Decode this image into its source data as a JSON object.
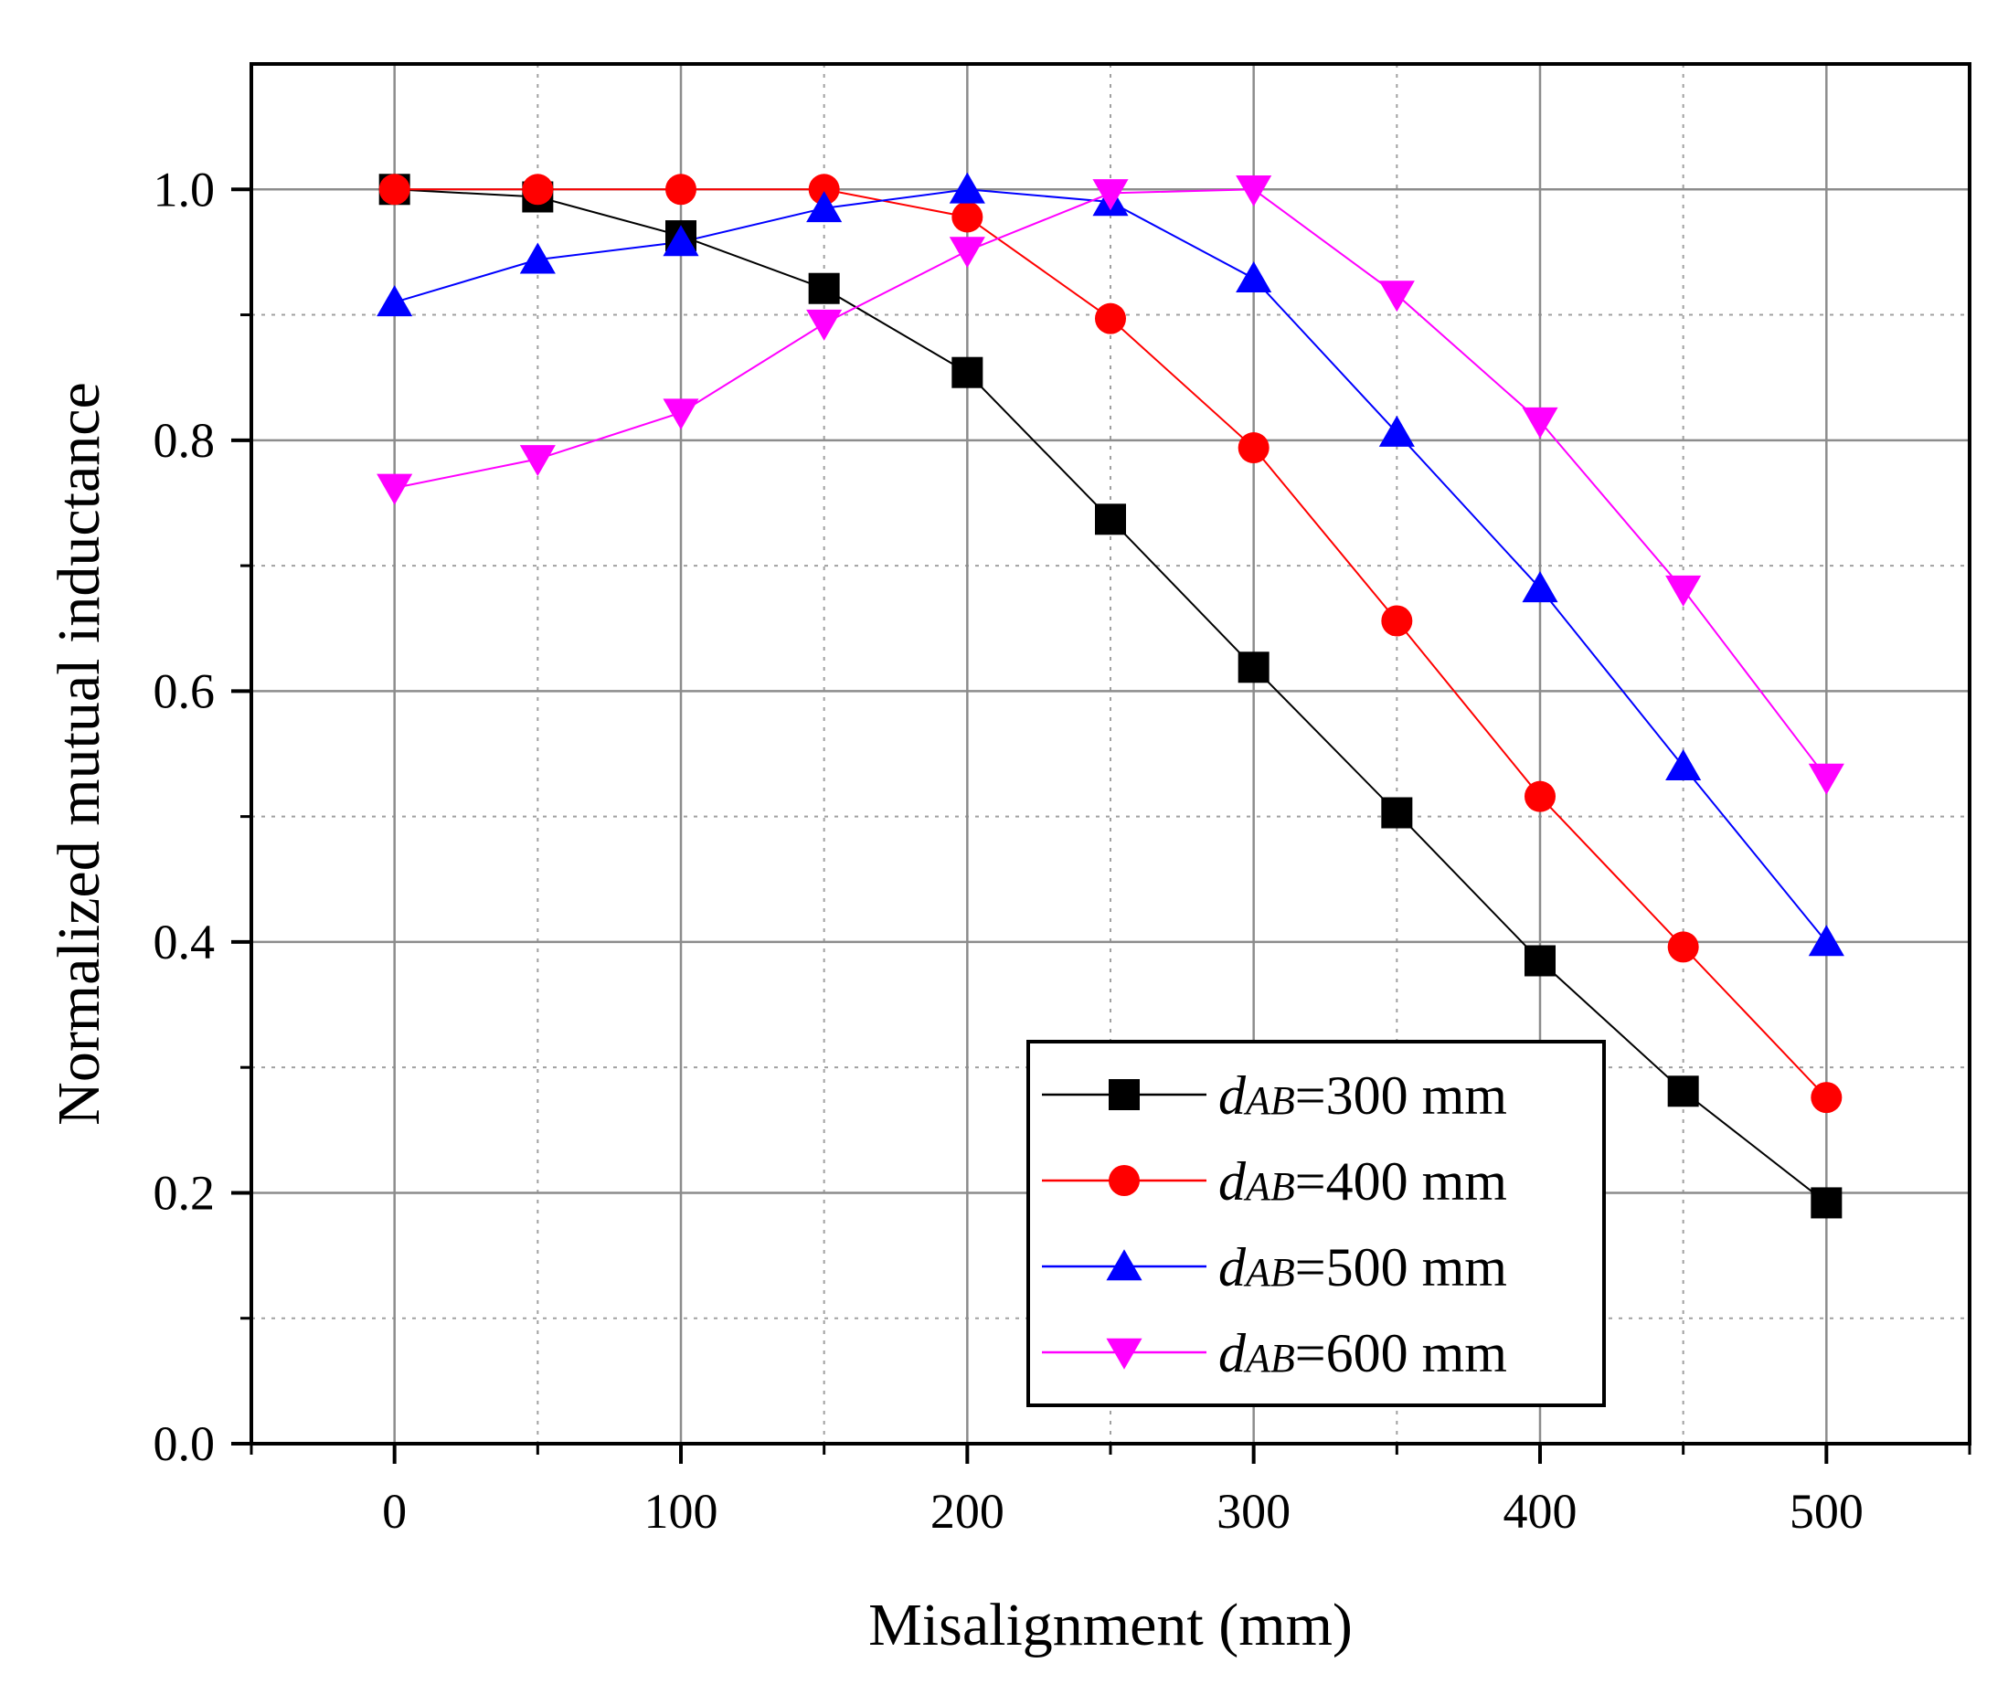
{
  "chart_data": {
    "type": "line",
    "title": "",
    "xlabel": "Misalignment (mm)",
    "ylabel": "Normalized mutual inductance",
    "xlim": [
      -50,
      550
    ],
    "ylim": [
      0.0,
      1.1
    ],
    "xticks": [
      0,
      100,
      200,
      300,
      400,
      500
    ],
    "xtick_labels": [
      "0",
      "100",
      "200",
      "300",
      "400",
      "500"
    ],
    "yticks": [
      0.0,
      0.2,
      0.4,
      0.6,
      0.8,
      1.0
    ],
    "ytick_labels": [
      "0.0",
      "0.2",
      "0.4",
      "0.6",
      "0.8",
      "1.0"
    ],
    "grid": true,
    "legend_position": "bottom-right",
    "x": [
      0,
      50,
      100,
      150,
      200,
      250,
      300,
      350,
      400,
      450,
      500
    ],
    "series": [
      {
        "name": "dAB=300 mm",
        "label_prefix": "d",
        "label_sub": "AB",
        "label_suffix": "=300 mm",
        "color": "#000000",
        "marker": "square",
        "values": [
          1.0,
          0.994,
          0.963,
          0.921,
          0.854,
          0.737,
          0.619,
          0.503,
          0.385,
          0.281,
          0.192
        ]
      },
      {
        "name": "dAB=400 mm",
        "label_prefix": "d",
        "label_sub": "AB",
        "label_suffix": "=400 mm",
        "color": "#ff0000",
        "marker": "circle",
        "values": [
          1.0,
          1.0,
          1.0,
          1.0,
          0.978,
          0.897,
          0.794,
          0.656,
          0.516,
          0.396,
          0.276
        ]
      },
      {
        "name": "dAB=500 mm",
        "label_prefix": "d",
        "label_sub": "AB",
        "label_suffix": "=500 mm",
        "color": "#0000ff",
        "marker": "triangle-up",
        "values": [
          0.91,
          0.944,
          0.958,
          0.985,
          1.0,
          0.99,
          0.929,
          0.806,
          0.682,
          0.54,
          0.4
        ]
      },
      {
        "name": "dAB=600 mm",
        "label_prefix": "d",
        "label_sub": "AB",
        "label_suffix": "=600 mm",
        "color": "#ff00ff",
        "marker": "triangle-down",
        "values": [
          0.762,
          0.785,
          0.822,
          0.893,
          0.951,
          0.997,
          1.0,
          0.916,
          0.815,
          0.681,
          0.531
        ]
      }
    ]
  }
}
